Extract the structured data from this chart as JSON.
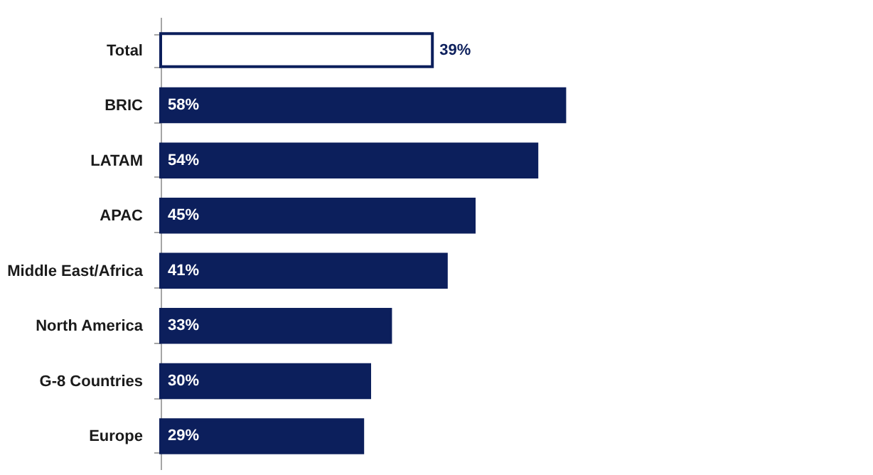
{
  "chart_data": {
    "type": "bar",
    "orientation": "horizontal",
    "categories": [
      "Total",
      "BRIC",
      "LATAM",
      "APAC",
      "Middle East/Africa",
      "North America",
      "G-8 Countries",
      "Europe"
    ],
    "values": [
      39,
      58,
      54,
      45,
      41,
      33,
      30,
      29
    ],
    "value_labels": [
      "39%",
      "58%",
      "54%",
      "45%",
      "41%",
      "33%",
      "30%",
      "29%"
    ],
    "colors": [
      "#ffffff",
      "#0c1f5c",
      "#0c1f5c",
      "#0c1f5c",
      "#0c1f5c",
      "#0c1f5c",
      "#0c1f5c",
      "#0c1f5c"
    ],
    "xlim": [
      0,
      100
    ],
    "tick_labels": "y"
  }
}
